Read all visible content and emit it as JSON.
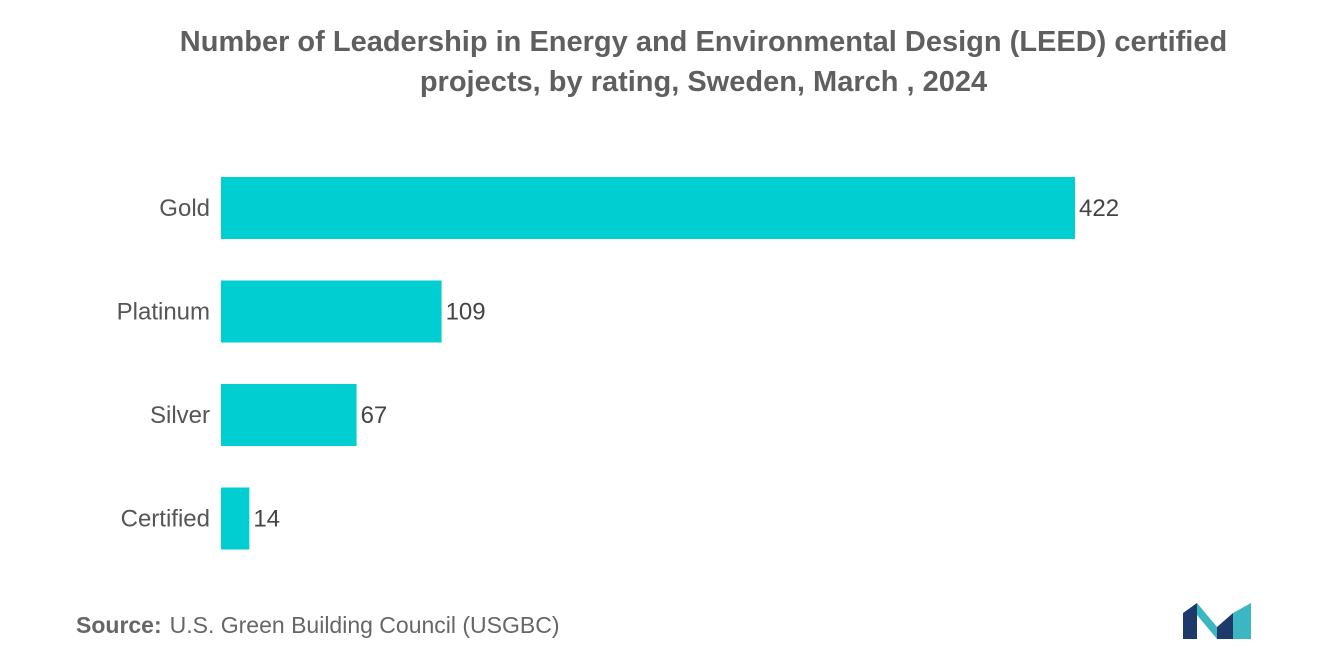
{
  "chart_data": {
    "type": "bar",
    "orientation": "horizontal",
    "title_lines": [
      "Number of Leadership in Energy and Environmental Design (LEED) certified",
      "projects, by rating, Sweden, March , 2024"
    ],
    "categories": [
      "Gold",
      "Platinum",
      "Silver",
      "Certified"
    ],
    "values": [
      422,
      109,
      67,
      14
    ],
    "xlim": [
      0,
      422
    ],
    "xlabel": "",
    "ylabel": "",
    "grid": false,
    "legend": "none",
    "bar_color": "#00CED1"
  },
  "source": {
    "label": "Source:",
    "text": "U.S. Green Building Council (USGBC)"
  },
  "logo": {
    "icon": "mordor-intelligence-logo-icon",
    "colors": [
      "#1d3a6b",
      "#3bb7c4"
    ]
  }
}
